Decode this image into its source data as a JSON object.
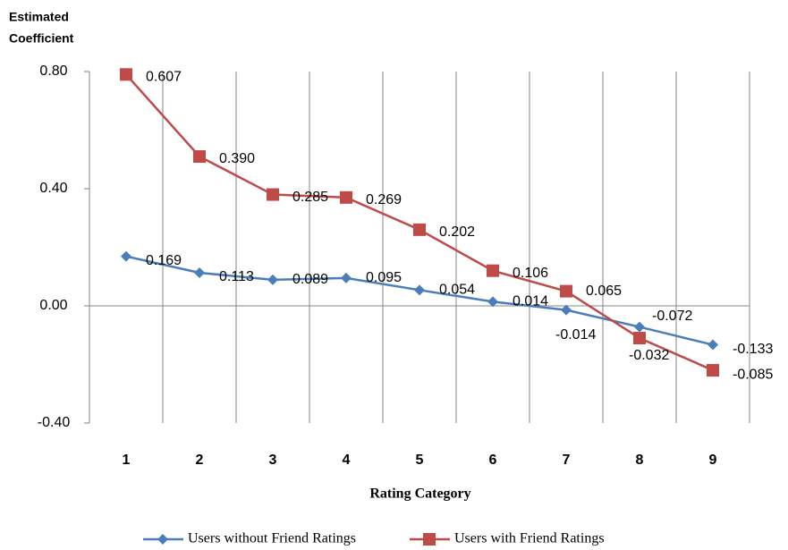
{
  "chart_data": {
    "type": "line",
    "y_label": [
      "Estimated",
      "Coefficient"
    ],
    "x_label": "Rating Category",
    "categories": [
      "1",
      "2",
      "3",
      "4",
      "5",
      "6",
      "7",
      "8",
      "9"
    ],
    "ylim": [
      -0.4,
      0.8
    ],
    "yticks": [
      {
        "value": -0.4,
        "label": "-0.40"
      },
      {
        "value": 0,
        "label": "0.00"
      },
      {
        "value": 0.4,
        "label": "0.40"
      },
      {
        "value": 0.8,
        "label": "0.80"
      }
    ],
    "grid": true,
    "series": [
      {
        "name": "Users without Friend Ratings",
        "color": "#4a7ebb",
        "marker": "diamond",
        "values": [
          0.169,
          0.113,
          0.089,
          0.095,
          0.054,
          0.014,
          -0.014,
          -0.072,
          -0.133
        ]
      },
      {
        "name": "Users with Friend Ratings",
        "color": "#be4b48",
        "marker": "square",
        "values": [
          0.79,
          0.51,
          0.38,
          0.37,
          0.26,
          0.12,
          0.05,
          -0.11,
          -0.22
        ],
        "annotations": [
          "0.607",
          "0.390",
          "0.285",
          "0.269",
          "0.202",
          "0.106",
          "0.065",
          "-0.032",
          "-0.085"
        ]
      }
    ],
    "legend": "bottom"
  }
}
